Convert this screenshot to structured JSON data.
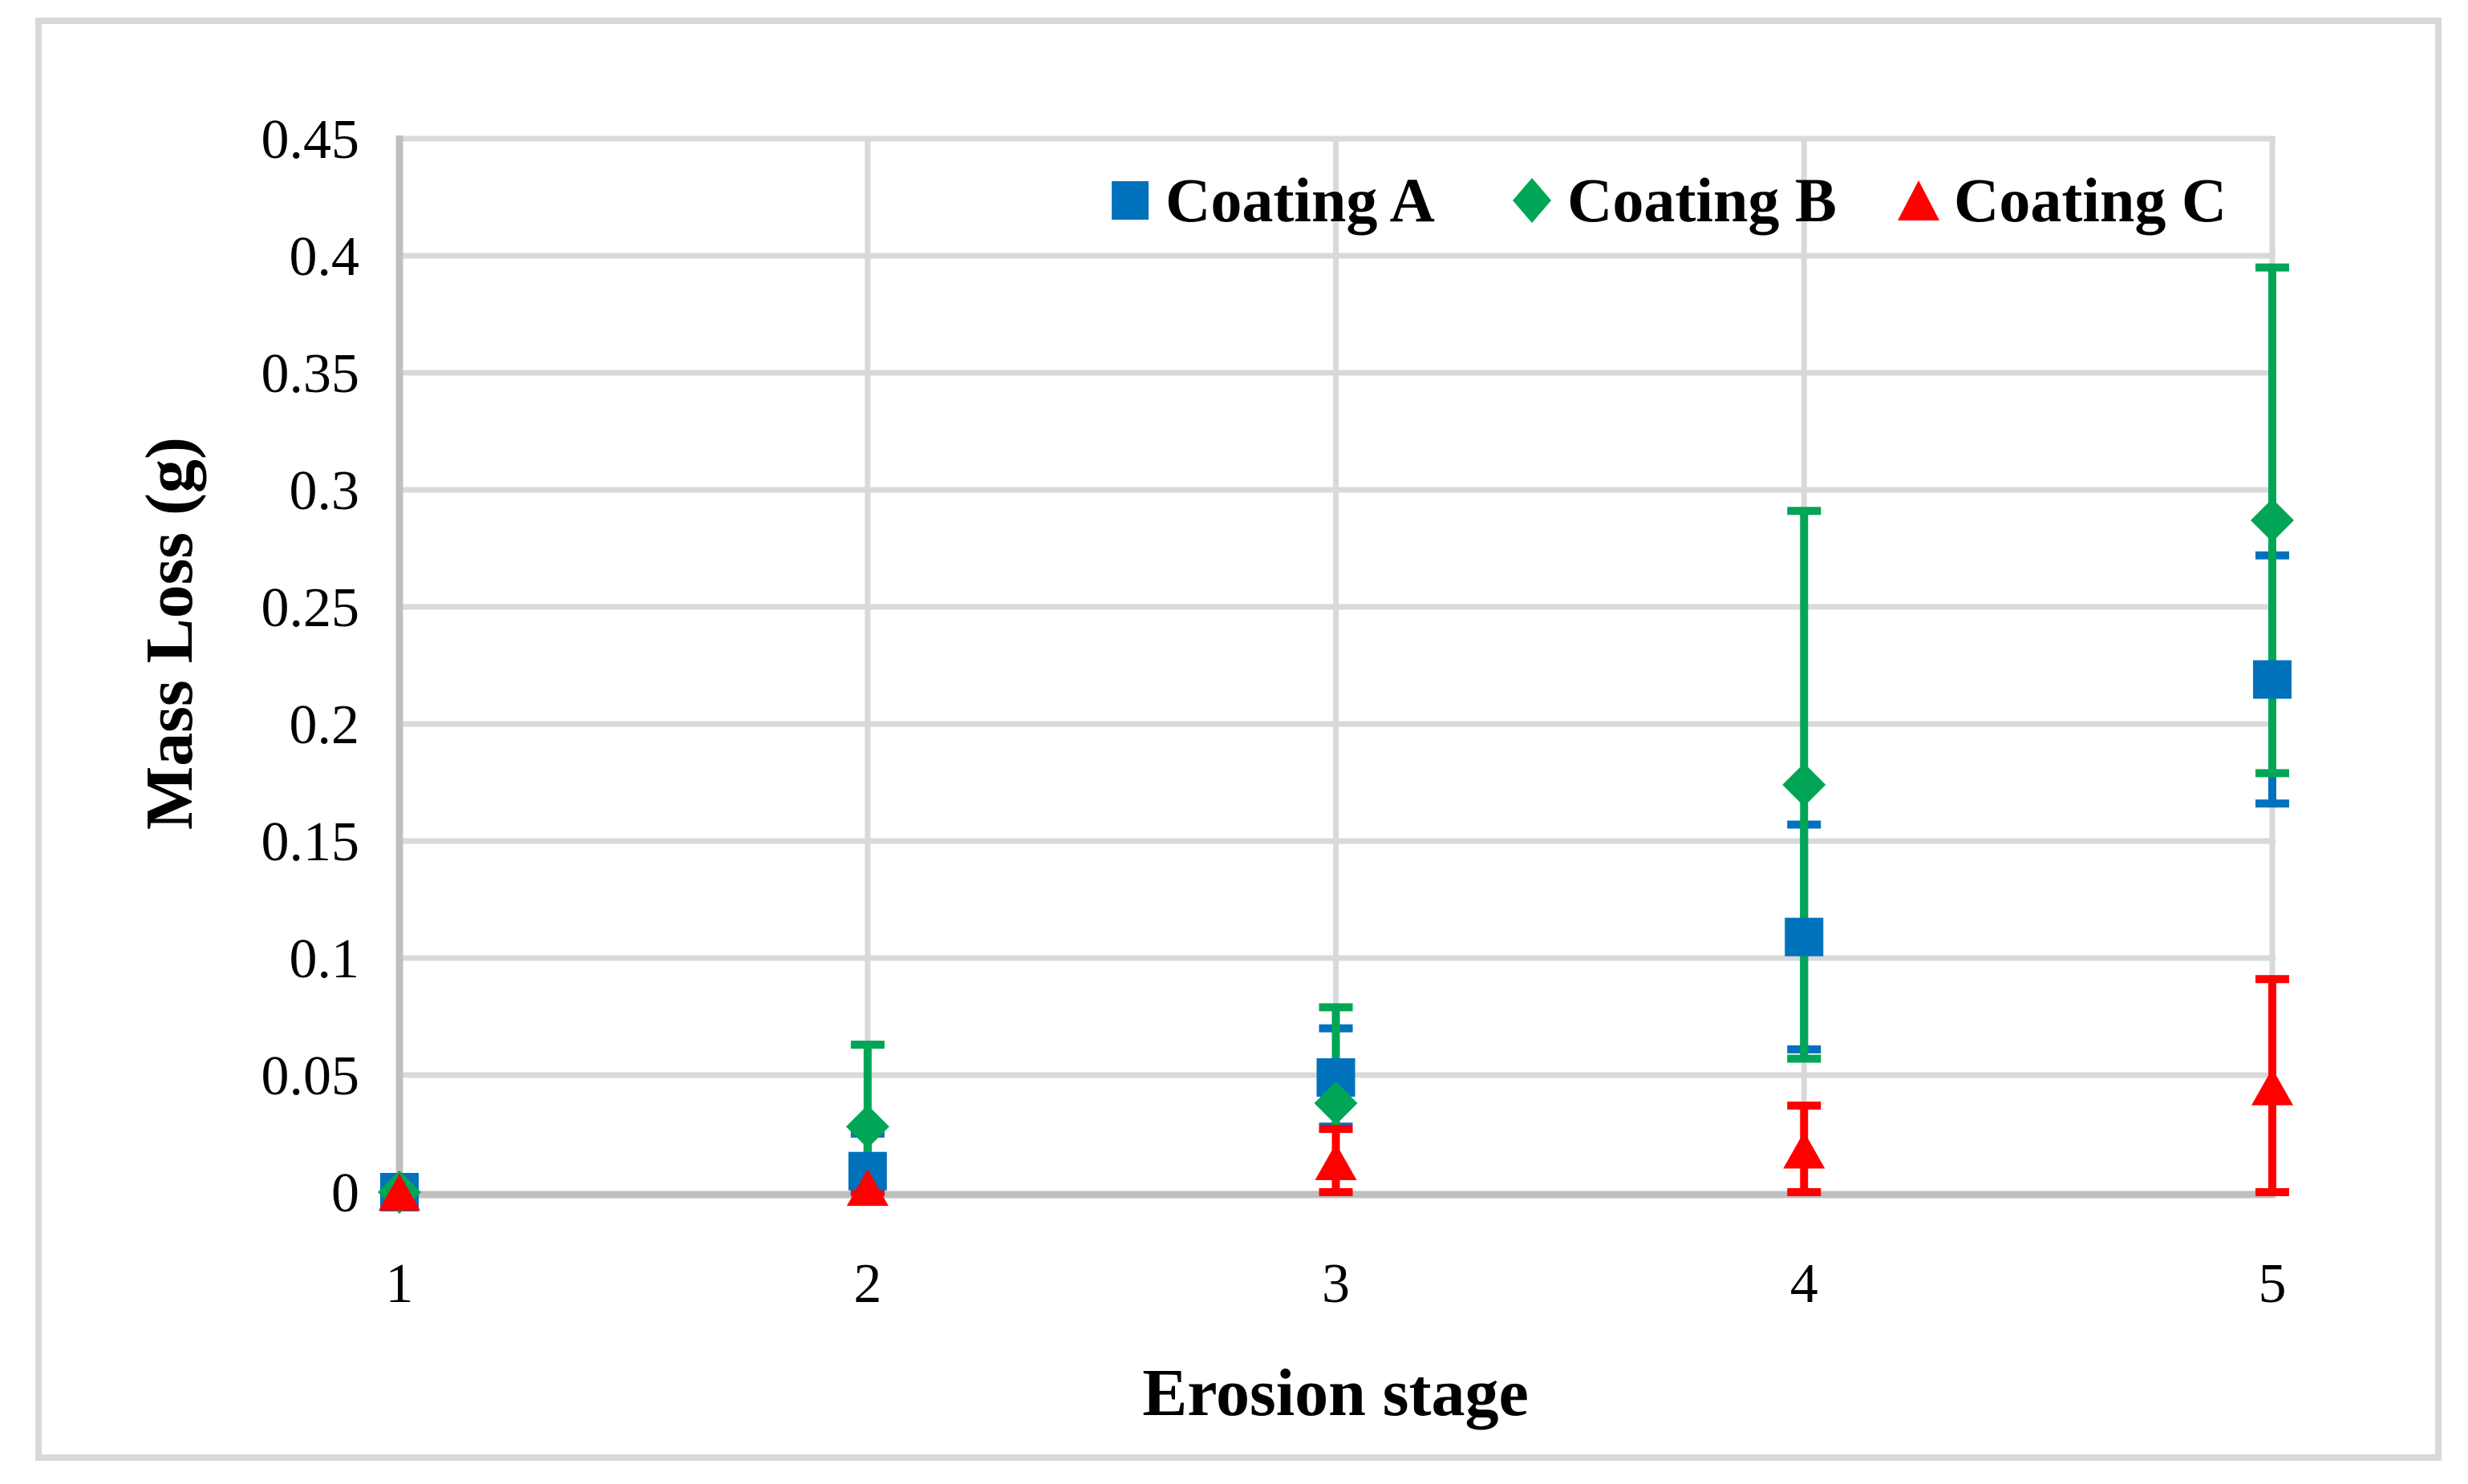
{
  "figure": {
    "background": "#FFFFFF",
    "frame_color": "#D9D9D9"
  },
  "chart_data": {
    "type": "scatter",
    "title": "",
    "xlabel": "Erosion stage",
    "ylabel": "Mass Loss (g)",
    "x_tick_labels": [
      "1",
      "2",
      "3",
      "4",
      "5"
    ],
    "y_tick_labels": [
      "0",
      "0.05",
      "0.1",
      "0.15",
      "0.2",
      "0.25",
      "0.3",
      "0.35",
      "0.4",
      "0.45"
    ],
    "xlim": [
      1,
      5
    ],
    "ylim": [
      0,
      0.45
    ],
    "grid": "both",
    "gridline_color": "#D9D9D9",
    "axis_line_color": "#BFBFBF",
    "legend_position": "top-inside",
    "series": [
      {
        "name": "Coating A",
        "marker": "square",
        "color": "#0072BC",
        "x": [
          1,
          2,
          3,
          4,
          5
        ],
        "y": [
          0,
          0.009,
          0.049,
          0.109,
          0.219
        ],
        "err_up": [
          0,
          0.016,
          0.021,
          0.048,
          0.053
        ],
        "err_down": [
          0,
          0.009,
          0.021,
          0.048,
          0.053
        ]
      },
      {
        "name": "Coating B",
        "marker": "diamond",
        "color": "#00A655",
        "x": [
          1,
          2,
          3,
          4,
          5
        ],
        "y": [
          0,
          0.028,
          0.038,
          0.174,
          0.287
        ],
        "err_up": [
          0,
          0.035,
          0.041,
          0.117,
          0.108
        ],
        "err_down": [
          0,
          0.028,
          0.038,
          0.117,
          0.108
        ]
      },
      {
        "name": "Coating C",
        "marker": "triangle",
        "color": "#FF0000",
        "x": [
          1,
          2,
          3,
          4,
          5
        ],
        "y": [
          0,
          0.002,
          0.013,
          0.018,
          0.045
        ],
        "err_up": [
          0,
          0.002,
          0.014,
          0.019,
          0.046
        ],
        "err_down": [
          0,
          0.002,
          0.013,
          0.018,
          0.045
        ]
      }
    ]
  }
}
